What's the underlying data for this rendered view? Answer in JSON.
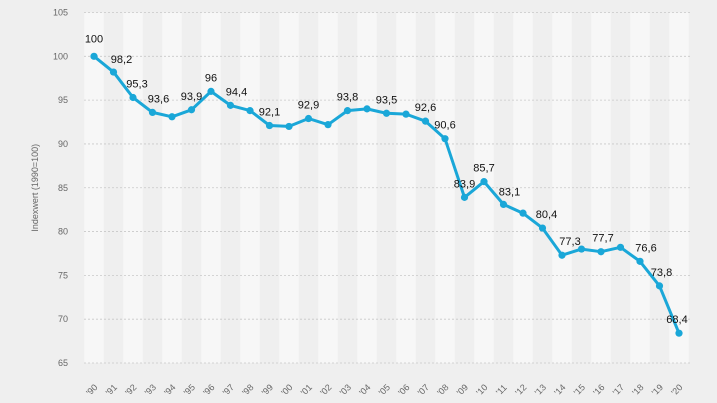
{
  "chart_data": {
    "type": "line",
    "title": "",
    "xlabel": "",
    "ylabel": "Indexwert (1990=100)",
    "ylim": [
      65,
      105
    ],
    "yticks": [
      65,
      70,
      75,
      80,
      85,
      90,
      95,
      100,
      105
    ],
    "grid": true,
    "legend": "none",
    "categories": [
      "'90",
      "'91",
      "'92",
      "'93",
      "'94",
      "'95",
      "'96",
      "'97",
      "'98",
      "'99",
      "'00",
      "'01",
      "'02",
      "'03",
      "'04",
      "'05",
      "'06",
      "'07",
      "'08",
      "'09",
      "'10",
      "'11",
      "'12",
      "'13",
      "'14",
      "'15",
      "'16",
      "'17",
      "'18",
      "'19",
      "'20"
    ],
    "series": [
      {
        "values": [
          100,
          98.2,
          95.3,
          93.6,
          93.1,
          93.9,
          96,
          94.4,
          93.8,
          92.1,
          92,
          92.9,
          92.2,
          93.8,
          94,
          93.5,
          93.4,
          92.6,
          90.6,
          83.9,
          85.7,
          83.1,
          82.1,
          80.4,
          77.3,
          78,
          77.7,
          78.2,
          76.6,
          73.8,
          68.4
        ],
        "data_labels": [
          "100",
          "98,2",
          "95,3",
          "93,6",
          "",
          "93,9",
          "96",
          "94,4",
          "",
          "92,1",
          "",
          "92,9",
          "",
          "93,8",
          "",
          "93,5",
          "",
          "92,6",
          "90,6",
          "83,9",
          "85,7",
          "83,1",
          "",
          "80,4",
          "77,3",
          "",
          "77,7",
          "",
          "76,6",
          "73,8",
          "68,4"
        ]
      }
    ],
    "colors": {
      "line": "#1aa7d8",
      "background": "#efefef",
      "band": "#f7f7f7",
      "grid": "#c8c8c8",
      "text": "#111111",
      "axis_text": "#666666"
    }
  }
}
